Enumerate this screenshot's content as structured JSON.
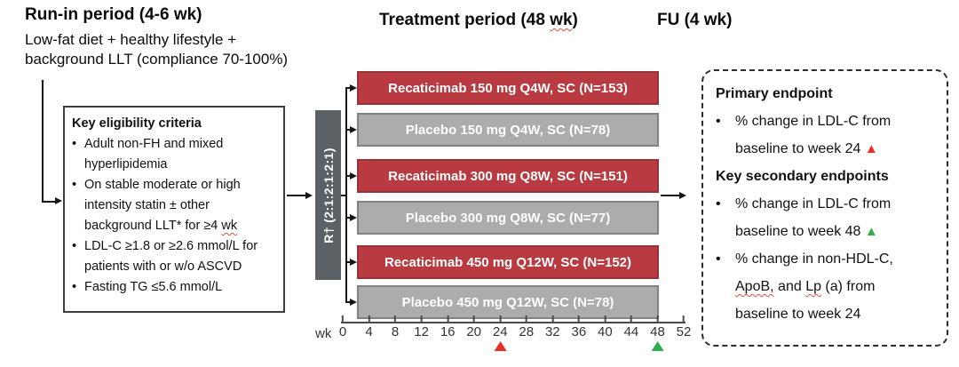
{
  "colors": {
    "drug_red": "#b93a41",
    "drug_red_border": "#93333a",
    "placebo_gray": "#acacac",
    "placebo_gray_border": "#828282",
    "randomization_dark_gray": "#5c6165",
    "triangle_red": "#ec2d24",
    "triangle_green": "#2faf4b",
    "squiggle_red": "#e2513e"
  },
  "runin": {
    "title": "Run-in period (4-6 wk)",
    "line1": "Low-fat diet + healthy lifestyle +",
    "line2": "background LLT (compliance 70-100%)"
  },
  "periods": {
    "treatment_pre": "Treatment period (48 ",
    "treatment_wk": "wk",
    "treatment_post": ")",
    "fu": "FU (4 wk)"
  },
  "eligibility": {
    "title": "Key eligibility criteria",
    "bullets": [
      {
        "pre": "Adult non-FH and mixed hyperlipidemia",
        "squiggle": ""
      },
      {
        "pre": "On stable moderate or high intensity statin ± other background LLT* for ≥4 ",
        "squiggle": "wk"
      },
      {
        "pre": "LDL-C ≥1.8 or ≥2.6 mmol/L for patients with or w/o ASCVD",
        "squiggle": ""
      },
      {
        "pre": "Fasting TG ≤5.6 mmol/L",
        "squiggle": ""
      }
    ]
  },
  "randomization": {
    "label": "R† (2:1:2:1:2:1)"
  },
  "arms": [
    {
      "label": "Recaticimab 150 mg Q4W, SC (N=153)",
      "type": "recaticimab"
    },
    {
      "label": "Placebo 150 mg Q4W, SC (N=78)",
      "type": "placebo"
    },
    {
      "label": "Recaticimab 300 mg Q8W, SC (N=151)",
      "type": "recaticimab"
    },
    {
      "label": "Placebo 300 mg Q8W, SC (N=77)",
      "type": "placebo"
    },
    {
      "label": "Recaticimab 450 mg Q12W, SC (N=152)",
      "type": "recaticimab"
    },
    {
      "label": "Placebo 450 mg Q12W, SC (N=78)",
      "type": "placebo"
    }
  ],
  "endpoints": {
    "primary_title": "Primary endpoint",
    "primary_text": "% change in LDL-C from baseline to week 24 ",
    "primary_marker": "▲",
    "secondary_title": "Key secondary endpoints",
    "secondary1_text": "% change in LDL-C from baseline to week 48 ",
    "secondary1_marker": "▲",
    "secondary2_pre": "% change in non-HDL-C, ",
    "secondary2_sq1": "ApoB,",
    "secondary2_mid": " and ",
    "secondary2_sq2": "Lp",
    "secondary2_post": " (a) from baseline to week 24"
  },
  "axis": {
    "unit": "wk",
    "ticks": [
      {
        "label": "0"
      },
      {
        "label": "4"
      },
      {
        "label": "8"
      },
      {
        "label": "12"
      },
      {
        "label": "16"
      },
      {
        "label": "20"
      },
      {
        "label": "24",
        "marker": "red"
      },
      {
        "label": "28"
      },
      {
        "label": "32"
      },
      {
        "label": "36"
      },
      {
        "label": "40"
      },
      {
        "label": "44"
      },
      {
        "label": "48",
        "marker": "green"
      },
      {
        "label": "52"
      }
    ]
  }
}
